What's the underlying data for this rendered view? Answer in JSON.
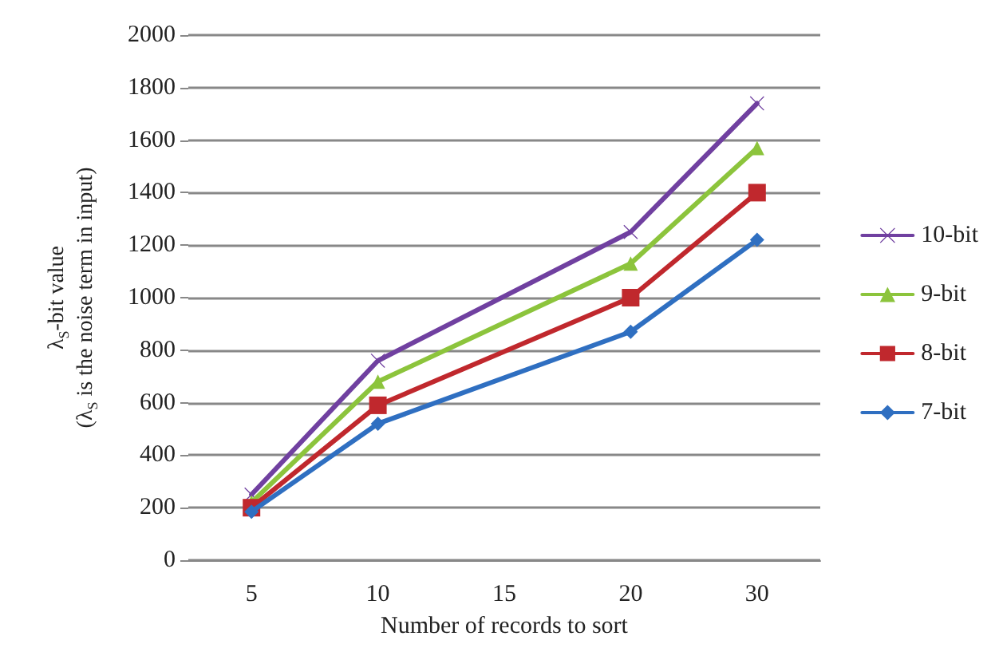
{
  "chart_data": {
    "type": "line",
    "xlabel": "Number of records to sort",
    "ylabel": "λ$_{S}$-bit value\n(λ$_{S}$ is the noise term in input)",
    "categories": [
      "5",
      "10",
      "15",
      "20",
      "30"
    ],
    "series": [
      {
        "name": "10-bit",
        "color": "#7040a0",
        "marker": "cross",
        "values": [
          250,
          760,
          null,
          1250,
          1740
        ]
      },
      {
        "name": "9-bit",
        "color": "#8cc43c",
        "marker": "triangle",
        "values": [
          220,
          680,
          null,
          1130,
          1570
        ]
      },
      {
        "name": "8-bit",
        "color": "#c0282d",
        "marker": "square",
        "values": [
          200,
          590,
          null,
          1000,
          1400
        ]
      },
      {
        "name": "7-bit",
        "color": "#2f6fc1",
        "marker": "diamond",
        "values": [
          185,
          520,
          null,
          870,
          1220
        ]
      }
    ],
    "ylim": [
      0,
      2000
    ],
    "yticks": [
      0,
      200,
      400,
      600,
      800,
      1000,
      1200,
      1400,
      1600,
      1800,
      2000
    ],
    "grid": "y",
    "legend": "right",
    "line_style": "solid"
  }
}
